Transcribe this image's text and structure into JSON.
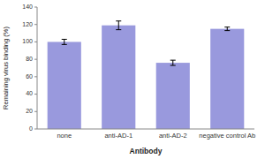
{
  "chart_data": {
    "type": "bar",
    "categories": [
      "none",
      "anti-AD-1",
      "anti-AD-2",
      "negative control Ab"
    ],
    "values": [
      100,
      119,
      76,
      115
    ],
    "errors": [
      3,
      5,
      3,
      2
    ],
    "color": "#9999dd",
    "xlabel": "Antibody",
    "ylabel": "Remaining virus binding (%)",
    "ylim": [
      0,
      140
    ],
    "yticks": [
      0,
      20,
      40,
      60,
      80,
      100,
      120,
      140
    ],
    "grid": false
  }
}
